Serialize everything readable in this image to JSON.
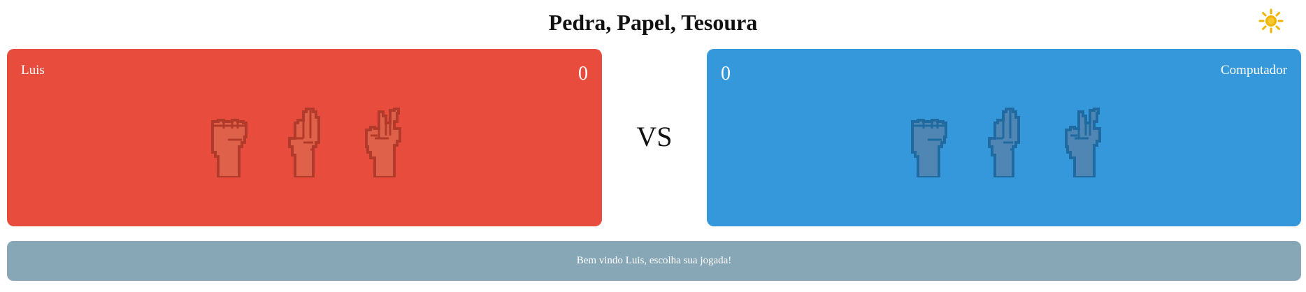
{
  "title": "Pedra, Papel, Tesoura",
  "theme_icon": "sun-icon",
  "player": {
    "name": "Luis",
    "score": "0",
    "color": "#e74c3c",
    "hand_fill": "#e06149",
    "hand_stroke": "#b13a2b"
  },
  "computer": {
    "name": "Computador",
    "score": "0",
    "color": "#3498db",
    "hand_fill": "#4f86b3",
    "hand_stroke": "#1f6aa0"
  },
  "choices": [
    "pedra",
    "papel",
    "tesoura"
  ],
  "vs_label": "VS",
  "message": {
    "text": "Bem vindo Luis, escolha sua jogada!",
    "color": "#87a7b6"
  },
  "accent": {
    "sun": "#f0b400"
  }
}
